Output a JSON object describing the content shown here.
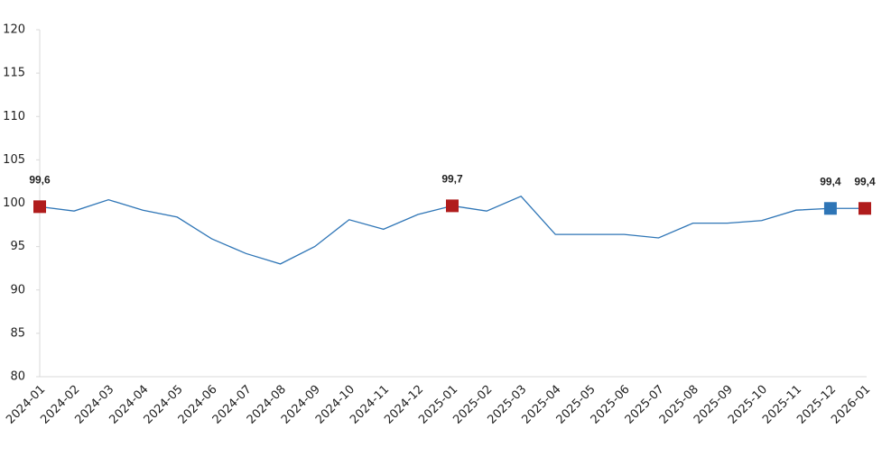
{
  "chart_data": {
    "type": "line",
    "categories": [
      "2024-01",
      "2024-02",
      "2024-03",
      "2024-04",
      "2024-05",
      "2024-06",
      "2024-07",
      "2024-08",
      "2024-09",
      "2024-10",
      "2024-11",
      "2024-12",
      "2025-01",
      "2025-02",
      "2025-03",
      "2025-04",
      "2025-05",
      "2025-06",
      "2025-07",
      "2025-08",
      "2025-09",
      "2025-10",
      "2025-11",
      "2025-12",
      "2026-01"
    ],
    "series": [
      {
        "color": "#2e75b6",
        "values": [
          99.6,
          99.1,
          100.4,
          99.2,
          98.4,
          95.9,
          94.2,
          93.0,
          95.0,
          98.1,
          97.0,
          98.7,
          99.7,
          99.1,
          100.8,
          96.4,
          96.4,
          96.4,
          96.0,
          97.7,
          97.7,
          98.0,
          99.2,
          99.4,
          99.4
        ],
        "value_labels": [
          "99,6",
          null,
          null,
          null,
          null,
          null,
          null,
          null,
          null,
          null,
          null,
          null,
          "99,7",
          null,
          null,
          null,
          null,
          null,
          null,
          null,
          null,
          null,
          null,
          "99,4",
          "99,4"
        ],
        "marker_colors": [
          "#b01c1c",
          null,
          null,
          null,
          null,
          null,
          null,
          null,
          null,
          null,
          null,
          null,
          "#b01c1c",
          null,
          null,
          null,
          null,
          null,
          null,
          null,
          null,
          null,
          null,
          "#2e75b6",
          "#b01c1c"
        ]
      }
    ],
    "ylim": [
      80,
      120
    ],
    "yticks": [
      80,
      85,
      90,
      95,
      100,
      105,
      110,
      115,
      120
    ],
    "grid": false
  }
}
